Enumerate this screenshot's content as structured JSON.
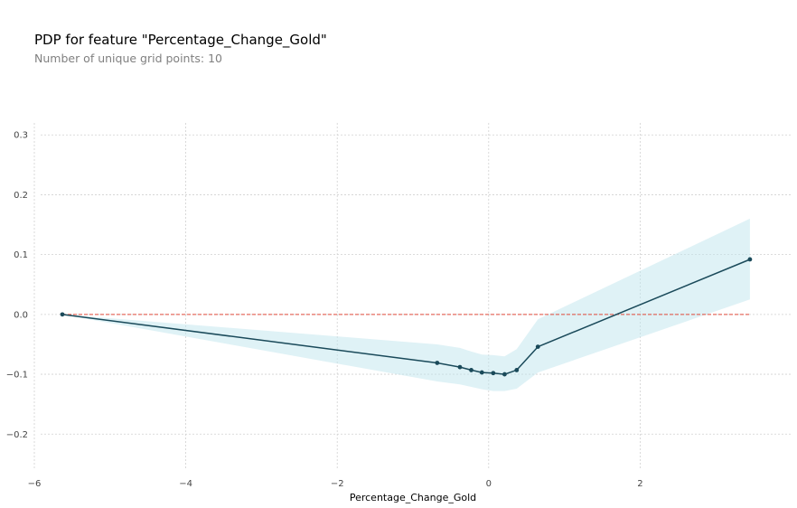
{
  "chart_data": {
    "type": "line",
    "title": "PDP for feature \"Percentage_Change_Gold\"",
    "subtitle": "Number of unique grid points: 10",
    "xlabel": "Percentage_Change_Gold",
    "ylabel": "",
    "xlim": [
      -6.0,
      4.0
    ],
    "ylim": [
      -0.26,
      0.32
    ],
    "x_ticks": [
      -6,
      -4,
      -2,
      0,
      2
    ],
    "x_tick_labels": [
      "−6",
      "−4",
      "−2",
      "0",
      "2"
    ],
    "y_ticks": [
      0.3,
      0.2,
      0.1,
      0.0,
      -0.1,
      -0.2
    ],
    "y_tick_labels": [
      "0.3",
      "0.2",
      "0.1",
      "0.0",
      "−0.1",
      "−0.2"
    ],
    "grid": true,
    "legend": "none",
    "x": [
      -5.63,
      -0.68,
      -0.38,
      -0.23,
      -0.09,
      0.06,
      0.21,
      0.37,
      0.65,
      3.45
    ],
    "series": [
      {
        "values": [
          0.0,
          -0.081,
          -0.088,
          -0.093,
          -0.097,
          -0.098,
          -0.1,
          -0.093,
          -0.054,
          0.092
        ],
        "lower": [
          0.0,
          -0.112,
          -0.117,
          -0.121,
          -0.125,
          -0.128,
          -0.128,
          -0.124,
          -0.097,
          0.025
        ],
        "upper": [
          0.0,
          -0.05,
          -0.056,
          -0.062,
          -0.067,
          -0.068,
          -0.07,
          -0.058,
          -0.008,
          0.16
        ]
      }
    ],
    "baseline": 0.0,
    "colors": {
      "line": "#1a4a5a",
      "band": "#bfe6ee",
      "baseline": "#e04a3a",
      "grid": "#d0d0d0"
    }
  }
}
